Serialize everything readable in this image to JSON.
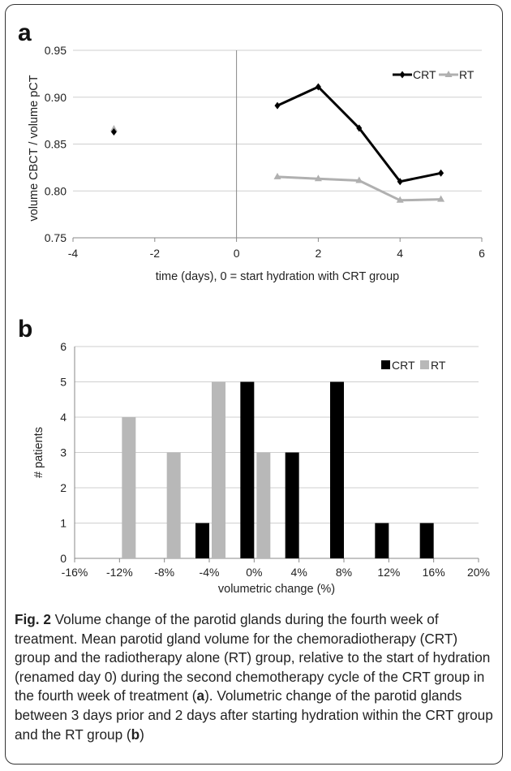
{
  "chart_data": [
    {
      "type": "line",
      "panel": "a",
      "xlabel": "time (days), 0 = start hydration with CRT group",
      "ylabel": "volume CBCT / volume pCT",
      "xlim": [
        -4,
        6
      ],
      "ylim": [
        0.75,
        0.95
      ],
      "xticks": [
        -4,
        -2,
        0,
        2,
        4,
        6
      ],
      "yticks": [
        0.75,
        0.8,
        0.85,
        0.9,
        0.95
      ],
      "ytick_labels": [
        "0.75",
        "0.80",
        "0.85",
        "0.90",
        "0.95"
      ],
      "grid": "horizontal",
      "legend": "top-right",
      "series": [
        {
          "name": "CRT",
          "color": "#000000",
          "marker": "diamond",
          "points": [
            [
              -3,
              0.863
            ],
            [
              1,
              0.891
            ],
            [
              2,
              0.911
            ],
            [
              3,
              0.867
            ],
            [
              4,
              0.81
            ],
            [
              5,
              0.819
            ]
          ]
        },
        {
          "name": "RT",
          "color": "#b0b0b0",
          "marker": "triangle",
          "points": [
            [
              -3,
              0.866
            ],
            [
              1,
              0.815
            ],
            [
              2,
              0.813
            ],
            [
              3,
              0.811
            ],
            [
              4,
              0.79
            ],
            [
              5,
              0.791
            ]
          ]
        }
      ]
    },
    {
      "type": "bar",
      "panel": "b",
      "xlabel": "volumetric change (%)",
      "ylabel": "# patients",
      "categories": [
        "-16%",
        "-12%",
        "-8%",
        "-4%",
        "0%",
        "4%",
        "8%",
        "12%",
        "16%",
        "20%"
      ],
      "ylim": [
        0,
        6
      ],
      "yticks": [
        0,
        1,
        2,
        3,
        4,
        5,
        6
      ],
      "grid": "horizontal",
      "legend": "top-right",
      "series": [
        {
          "name": "CRT",
          "color": "#000000",
          "values": [
            0,
            0,
            0,
            1,
            5,
            3,
            5,
            1,
            1,
            0
          ]
        },
        {
          "name": "RT",
          "color": "#b8b8b8",
          "values": [
            0,
            4,
            3,
            5,
            3,
            0,
            0,
            0,
            0,
            0
          ]
        }
      ]
    }
  ],
  "caption": {
    "label": "Fig. 2",
    "parts": [
      {
        "t": " Volume change of the parotid glands during the fourth week of treatment. Mean parotid gland volume for the chemoradiotherapy (CRT) group and the radiotherapy alone (RT) group, relative to the start of hydration (renamed day 0) during the second chemotherapy cycle of the CRT group in the fourth week of treatment (",
        "b": false
      },
      {
        "t": "a",
        "b": true
      },
      {
        "t": "). Volumetric change of the parotid glands between 3 days prior and 2 days after starting hydration within the CRT group and the RT group (",
        "b": false
      },
      {
        "t": "b",
        "b": true
      },
      {
        "t": ")",
        "b": false
      }
    ]
  }
}
